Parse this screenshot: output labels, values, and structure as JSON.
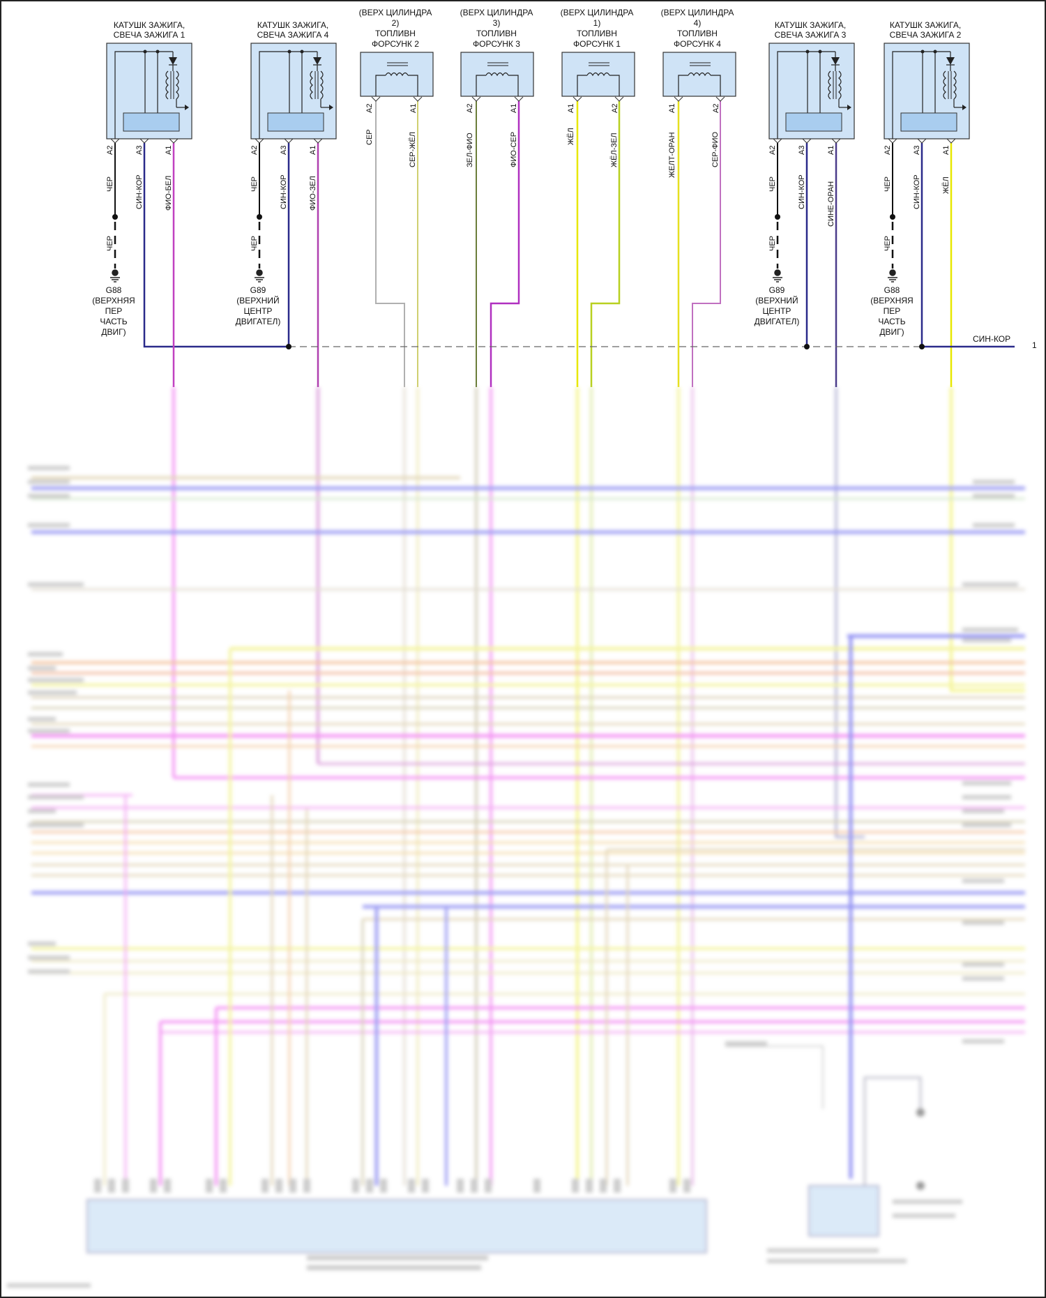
{
  "components": [
    {
      "id": "coil1",
      "lines": [
        "КАТУШК ЗАЖИГА,",
        "СВЕЧА ЗАЖИГА 1"
      ],
      "pins": [
        "A2",
        "A3",
        "A1"
      ]
    },
    {
      "id": "coil4",
      "lines": [
        "КАТУШК ЗАЖИГА,",
        "СВЕЧА ЗАЖИГА 4"
      ],
      "pins": [
        "A2",
        "A3",
        "A1"
      ]
    },
    {
      "id": "inj2",
      "lines": [
        "(ВЕРХ ЦИЛИНДРА",
        "2)",
        "ТОПЛИВН",
        "ФОРСУНК 2"
      ],
      "pins": [
        "A2",
        "A1"
      ]
    },
    {
      "id": "inj3",
      "lines": [
        "(ВЕРХ ЦИЛИНДРА",
        "3)",
        "ТОПЛИВН",
        "ФОРСУНК 3"
      ],
      "pins": [
        "A2",
        "A1"
      ]
    },
    {
      "id": "inj1",
      "lines": [
        "(ВЕРХ ЦИЛИНДРА",
        "1)",
        "ТОПЛИВН",
        "ФОРСУНК 1"
      ],
      "pins": [
        "A1",
        "A2"
      ]
    },
    {
      "id": "inj4",
      "lines": [
        "(ВЕРХ ЦИЛИНДРА",
        "4)",
        "ТОПЛИВН",
        "ФОРСУНК 4"
      ],
      "pins": [
        "A1",
        "A2"
      ]
    },
    {
      "id": "coil3",
      "lines": [
        "КАТУШК ЗАЖИГА,",
        "СВЕЧА ЗАЖИГА 3"
      ],
      "pins": [
        "A2",
        "A3",
        "A1"
      ]
    },
    {
      "id": "coil2",
      "lines": [
        "КАТУШК ЗАЖИГА,",
        "СВЕЧА ЗАЖИГА 2"
      ],
      "pins": [
        "A2",
        "A3",
        "A1"
      ]
    }
  ],
  "wire_labels": {
    "coil1": [
      "ЧЕР",
      "СИН-КОР",
      "ФИО-БЕЛ"
    ],
    "coil4": [
      "ЧЕР",
      "СИН-КОР",
      "ФИО-ЗЕЛ"
    ],
    "inj2": [
      "СЕР",
      "СЕР-ЖЁЛ"
    ],
    "inj3": [
      "ЗЕЛ-ФИО",
      "ФИО-СЕР"
    ],
    "inj1": [
      "ЖЁЛ",
      "ЖЁЛ-ЗЕЛ"
    ],
    "inj4": [
      "ЖЕЛТ-ОРАН",
      "СЕР-ФИО"
    ],
    "coil3": [
      "ЧЕР",
      "СИН-КОР",
      "СИНЕ-ОРАН"
    ],
    "coil2": [
      "ЧЕР",
      "СИН-КОР",
      "ЖЁЛ"
    ]
  },
  "ground_wire_label": "ЧЕР",
  "grounds": [
    {
      "id": "g1",
      "lines": [
        "G88",
        "(ВЕРХНЯЯ",
        "ПЕР",
        "ЧАСТЬ",
        "ДВИГ)"
      ]
    },
    {
      "id": "g2",
      "lines": [
        "G89",
        "(ВЕРХНИЙ",
        "ЦЕНТР",
        "ДВИГАТЕЛ)"
      ]
    },
    {
      "id": "g3",
      "lines": [
        "G89",
        "(ВЕРХНИЙ",
        "ЦЕНТР",
        "ДВИГАТЕЛ)"
      ]
    },
    {
      "id": "g4",
      "lines": [
        "G88",
        "(ВЕРХНЯЯ",
        "ПЕР",
        "ЧАСТЬ",
        "ДВИГ)"
      ]
    }
  ],
  "bus": {
    "label": "СИН-КОР",
    "ref": "1"
  },
  "colors": {
    "black": "#111111",
    "navy": "#2a2a8a",
    "violet_white": "#c040c0",
    "violet_green": "#b040b0",
    "grey": "#b0b0b0",
    "grey_yellow": "#cfcf70",
    "green_violet": "#6b7d3a",
    "violet_grey": "#b030c0",
    "yellow": "#e8e800",
    "yellow_green": "#b8d020",
    "yellow_orange": "#e6e020",
    "grey_violet": "#c070c0",
    "component_fill": "#cfe3f6",
    "component_inner": "#a9cdef",
    "pink": "#f070f0",
    "blue": "#6060f0",
    "tan": "#d8c8a0",
    "orange": "#f0b080",
    "khaki": "#c8c09a"
  }
}
